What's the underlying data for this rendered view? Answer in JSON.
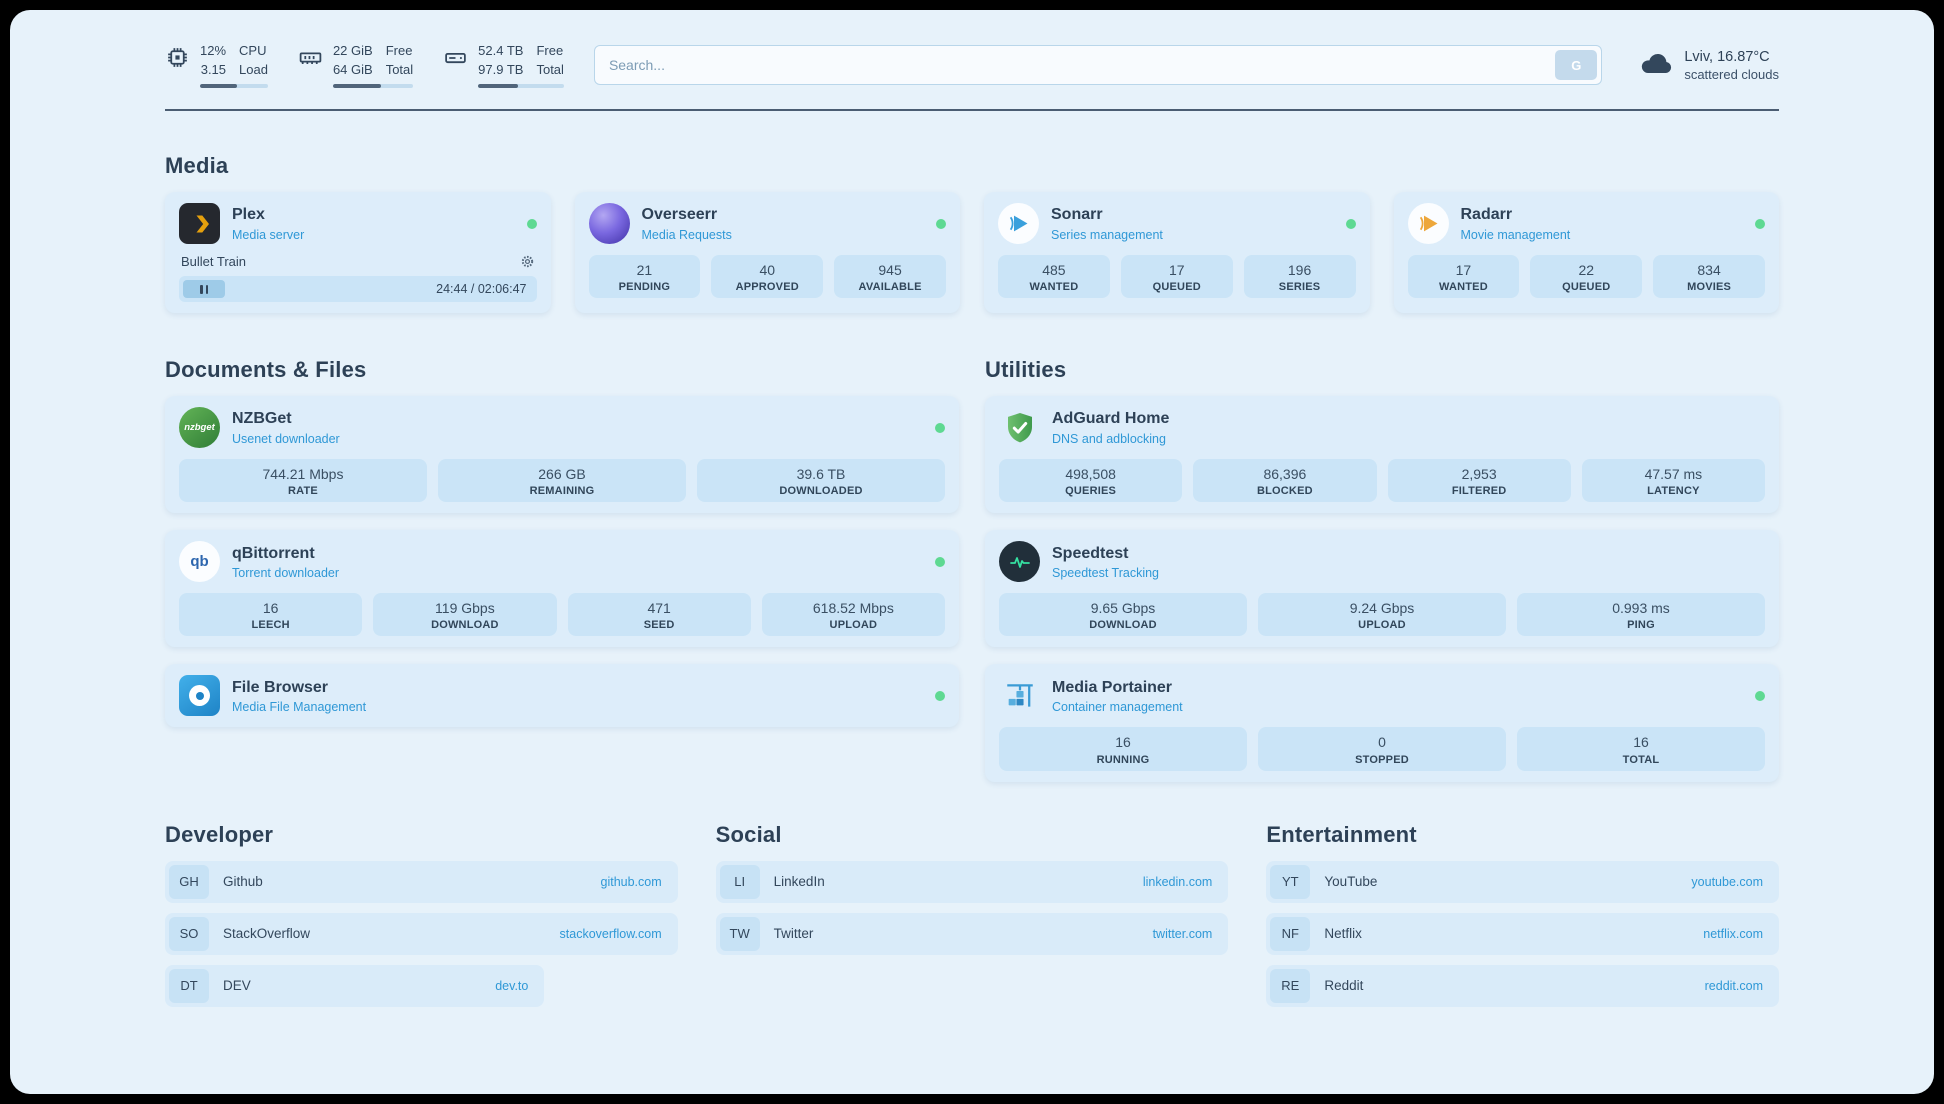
{
  "colors": {
    "page_background": "#e7f2fa",
    "card_background": "#ddedfa",
    "stat_background": "#cae4f7",
    "accent_blue": "#2f98d6",
    "text_dark": "#33475c",
    "status_online_green": "#5ed992",
    "plex_yellow": "#e5a00d"
  },
  "topbar": {
    "cpu": {
      "value_top": "12%",
      "value_bottom": "3.15",
      "label_top": "CPU",
      "label_bottom": "Load",
      "bar_pct": 55
    },
    "memory": {
      "value_top": "22 GiB",
      "value_bottom": "64 GiB",
      "label_top": "Free",
      "label_bottom": "Total",
      "bar_pct": 60
    },
    "disk": {
      "value_top": "52.4 TB",
      "value_bottom": "97.9 TB",
      "label_top": "Free",
      "label_bottom": "Total",
      "bar_pct": 47
    },
    "search": {
      "placeholder": "Search...",
      "provider_button": "G"
    },
    "weather": {
      "location": "Lviv, 16.87°C",
      "condition": "scattered clouds"
    }
  },
  "sections": {
    "media": {
      "title": "Media",
      "cards": {
        "plex": {
          "name": "Plex",
          "subtitle": "Media server",
          "online": true,
          "now_playing": {
            "title": "Bullet Train",
            "time": "24:44 / 02:06:47"
          }
        },
        "overseerr": {
          "name": "Overseerr",
          "subtitle": "Media Requests",
          "online": true,
          "stats": [
            {
              "value": "21",
              "label": "PENDING"
            },
            {
              "value": "40",
              "label": "APPROVED"
            },
            {
              "value": "945",
              "label": "AVAILABLE"
            }
          ]
        },
        "sonarr": {
          "name": "Sonarr",
          "subtitle": "Series management",
          "online": true,
          "stats": [
            {
              "value": "485",
              "label": "WANTED"
            },
            {
              "value": "17",
              "label": "QUEUED"
            },
            {
              "value": "196",
              "label": "SERIES"
            }
          ]
        },
        "radarr": {
          "name": "Radarr",
          "subtitle": "Movie management",
          "online": true,
          "stats": [
            {
              "value": "17",
              "label": "WANTED"
            },
            {
              "value": "22",
              "label": "QUEUED"
            },
            {
              "value": "834",
              "label": "MOVIES"
            }
          ]
        }
      }
    },
    "documents": {
      "title": "Documents & Files",
      "cards": {
        "nzbget": {
          "name": "NZBGet",
          "subtitle": "Usenet downloader",
          "online": true,
          "icon_text": "nzbget",
          "stats": [
            {
              "value": "744.21 Mbps",
              "label": "RATE"
            },
            {
              "value": "266 GB",
              "label": "REMAINING"
            },
            {
              "value": "39.6 TB",
              "label": "DOWNLOADED"
            }
          ]
        },
        "qbittorrent": {
          "name": "qBittorrent",
          "subtitle": "Torrent downloader",
          "online": true,
          "icon_text": "qb",
          "stats": [
            {
              "value": "16",
              "label": "LEECH"
            },
            {
              "value": "119 Gbps",
              "label": "DOWNLOAD"
            },
            {
              "value": "471",
              "label": "SEED"
            },
            {
              "value": "618.52 Mbps",
              "label": "UPLOAD"
            }
          ]
        },
        "filebrowser": {
          "name": "File Browser",
          "subtitle": "Media File Management",
          "online": true
        }
      }
    },
    "utilities": {
      "title": "Utilities",
      "cards": {
        "adguard": {
          "name": "AdGuard Home",
          "subtitle": "DNS and adblocking",
          "online": false,
          "stats": [
            {
              "value": "498,508",
              "label": "QUERIES"
            },
            {
              "value": "86,396",
              "label": "BLOCKED"
            },
            {
              "value": "2,953",
              "label": "FILTERED"
            },
            {
              "value": "47.57 ms",
              "label": "LATENCY"
            }
          ]
        },
        "speedtest": {
          "name": "Speedtest",
          "subtitle": "Speedtest Tracking",
          "online": false,
          "stats": [
            {
              "value": "9.65 Gbps",
              "label": "DOWNLOAD"
            },
            {
              "value": "9.24 Gbps",
              "label": "UPLOAD"
            },
            {
              "value": "0.993 ms",
              "label": "PING"
            }
          ]
        },
        "portainer": {
          "name": "Media Portainer",
          "subtitle": "Container management",
          "online": true,
          "stats": [
            {
              "value": "16",
              "label": "RUNNING"
            },
            {
              "value": "0",
              "label": "STOPPED"
            },
            {
              "value": "16",
              "label": "TOTAL"
            }
          ]
        }
      }
    }
  },
  "bookmarks": {
    "developer": {
      "title": "Developer",
      "items": [
        {
          "abbr": "GH",
          "name": "Github",
          "url": "github.com"
        },
        {
          "abbr": "SO",
          "name": "StackOverflow",
          "url": "stackoverflow.com"
        },
        {
          "abbr": "DT",
          "name": "DEV",
          "url": "dev.to"
        }
      ]
    },
    "social": {
      "title": "Social",
      "items": [
        {
          "abbr": "LI",
          "name": "LinkedIn",
          "url": "linkedin.com"
        },
        {
          "abbr": "TW",
          "name": "Twitter",
          "url": "twitter.com"
        }
      ]
    },
    "entertainment": {
      "title": "Entertainment",
      "items": [
        {
          "abbr": "YT",
          "name": "YouTube",
          "url": "youtube.com"
        },
        {
          "abbr": "NF",
          "name": "Netflix",
          "url": "netflix.com"
        },
        {
          "abbr": "RE",
          "name": "Reddit",
          "url": "reddit.com"
        }
      ]
    }
  }
}
